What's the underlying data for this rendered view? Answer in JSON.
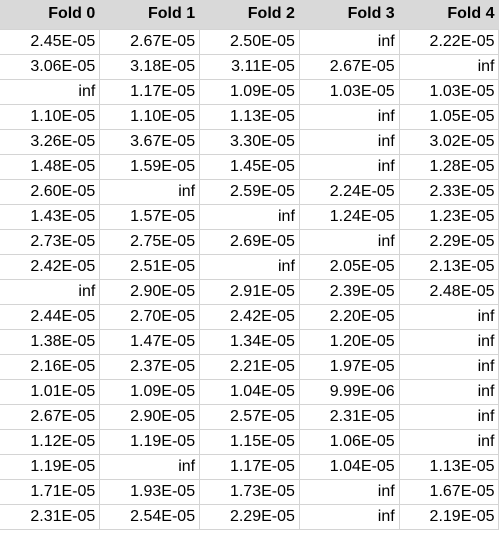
{
  "table": {
    "headers": [
      "Fold 0",
      "Fold 1",
      "Fold 2",
      "Fold 3",
      "Fold 4"
    ],
    "rows": [
      [
        "2.45E-05",
        "2.67E-05",
        "2.50E-05",
        "inf",
        "2.22E-05"
      ],
      [
        "3.06E-05",
        "3.18E-05",
        "3.11E-05",
        "2.67E-05",
        "inf"
      ],
      [
        "inf",
        "1.17E-05",
        "1.09E-05",
        "1.03E-05",
        "1.03E-05"
      ],
      [
        "1.10E-05",
        "1.10E-05",
        "1.13E-05",
        "inf",
        "1.05E-05"
      ],
      [
        "3.26E-05",
        "3.67E-05",
        "3.30E-05",
        "inf",
        "3.02E-05"
      ],
      [
        "1.48E-05",
        "1.59E-05",
        "1.45E-05",
        "inf",
        "1.28E-05"
      ],
      [
        "2.60E-05",
        "inf",
        "2.59E-05",
        "2.24E-05",
        "2.33E-05"
      ],
      [
        "1.43E-05",
        "1.57E-05",
        "inf",
        "1.24E-05",
        "1.23E-05"
      ],
      [
        "2.73E-05",
        "2.75E-05",
        "2.69E-05",
        "inf",
        "2.29E-05"
      ],
      [
        "2.42E-05",
        "2.51E-05",
        "inf",
        "2.05E-05",
        "2.13E-05"
      ],
      [
        "inf",
        "2.90E-05",
        "2.91E-05",
        "2.39E-05",
        "2.48E-05"
      ],
      [
        "2.44E-05",
        "2.70E-05",
        "2.42E-05",
        "2.20E-05",
        "inf"
      ],
      [
        "1.38E-05",
        "1.47E-05",
        "1.34E-05",
        "1.20E-05",
        "inf"
      ],
      [
        "2.16E-05",
        "2.37E-05",
        "2.21E-05",
        "1.97E-05",
        "inf"
      ],
      [
        "1.01E-05",
        "1.09E-05",
        "1.04E-05",
        "9.99E-06",
        "inf"
      ],
      [
        "2.67E-05",
        "2.90E-05",
        "2.57E-05",
        "2.31E-05",
        "inf"
      ],
      [
        "1.12E-05",
        "1.19E-05",
        "1.15E-05",
        "1.06E-05",
        "inf"
      ],
      [
        "1.19E-05",
        "inf",
        "1.17E-05",
        "1.04E-05",
        "1.13E-05"
      ],
      [
        "1.71E-05",
        "1.93E-05",
        "1.73E-05",
        "inf",
        "1.67E-05"
      ],
      [
        "2.31E-05",
        "2.54E-05",
        "2.29E-05",
        "inf",
        "2.19E-05"
      ]
    ]
  }
}
